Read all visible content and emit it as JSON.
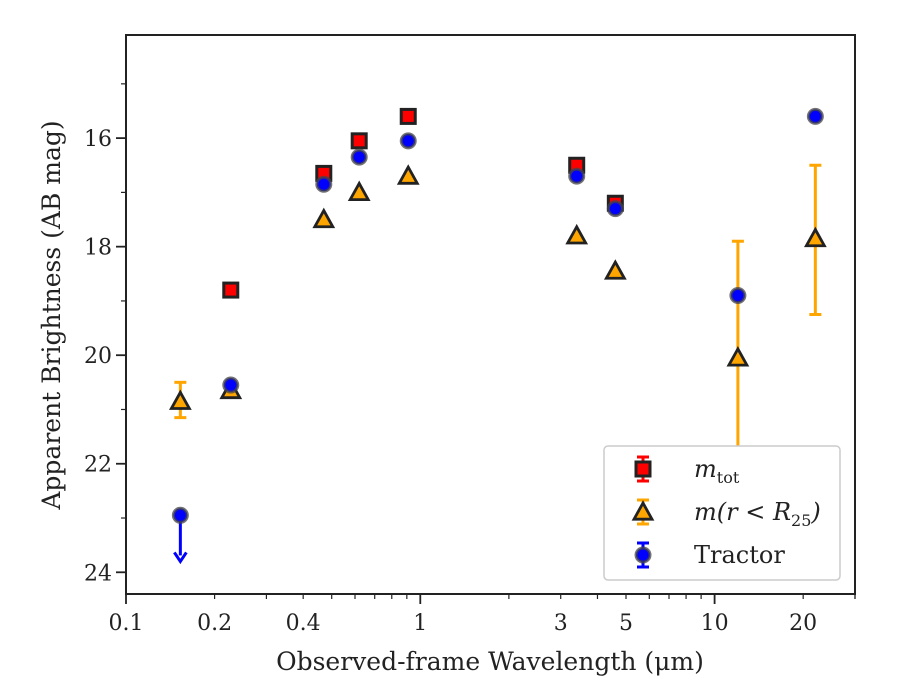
{
  "chart_data": {
    "type": "scatter",
    "xlabel": "Observed-frame Wavelength (μm)",
    "ylabel": "Apparent Brightness (AB mag)",
    "xscale": "log",
    "xlim": [
      0.1,
      30
    ],
    "ylim": [
      24.4,
      14.1
    ],
    "y_inverted": true,
    "x_ticks": [
      0.1,
      0.2,
      0.4,
      1,
      3,
      5,
      10,
      20
    ],
    "x_tick_labels": [
      "0.1",
      "0.2",
      "0.4",
      "1",
      "3",
      "5",
      "10",
      "20"
    ],
    "y_ticks": [
      16,
      18,
      20,
      22,
      24
    ],
    "y_tick_labels": [
      "16",
      "18",
      "20",
      "22",
      "24"
    ],
    "grid": false,
    "legend_position": "lower-right",
    "series": [
      {
        "name": "m_tot",
        "legend": {
          "italic": "m",
          "sub": "tot",
          "suffix": ""
        },
        "marker": "square",
        "color": "#ff0000",
        "edge_color": "#222222",
        "error_color": "#ff0000",
        "points": [
          {
            "x": 0.227,
            "y": 18.8
          },
          {
            "x": 0.47,
            "y": 16.65
          },
          {
            "x": 0.62,
            "y": 16.05
          },
          {
            "x": 0.91,
            "y": 15.6
          },
          {
            "x": 3.4,
            "y": 16.5
          },
          {
            "x": 4.6,
            "y": 17.2
          }
        ]
      },
      {
        "name": "m(r < R25)",
        "legend": {
          "italic": "m(r < R",
          "sub": "25",
          "suffix": ")"
        },
        "marker": "triangle",
        "color": "#ffa500",
        "edge_color": "#222222",
        "error_color": "#ffa500",
        "points": [
          {
            "x": 0.153,
            "y": 20.85,
            "yerr": [
              20.5,
              21.15
            ]
          },
          {
            "x": 0.227,
            "y": 20.65
          },
          {
            "x": 0.47,
            "y": 17.5
          },
          {
            "x": 0.62,
            "y": 17.0
          },
          {
            "x": 0.91,
            "y": 16.7
          },
          {
            "x": 3.4,
            "y": 17.8
          },
          {
            "x": 4.6,
            "y": 18.45
          },
          {
            "x": 12.0,
            "y": 20.05,
            "yerr": [
              17.9,
              22.2
            ]
          },
          {
            "x": 22.0,
            "y": 17.85,
            "yerr": [
              16.5,
              19.25
            ]
          }
        ]
      },
      {
        "name": "Tractor",
        "legend": {
          "italic": "",
          "sub": "",
          "suffix": "Tractor"
        },
        "marker": "circle",
        "color": "#0000ff",
        "edge_color": "#444444",
        "error_color": "#0000ff",
        "points": [
          {
            "x": 0.153,
            "y": 22.95,
            "upper_limit": true,
            "limit_to": 23.8
          },
          {
            "x": 0.227,
            "y": 20.55
          },
          {
            "x": 0.47,
            "y": 16.85
          },
          {
            "x": 0.62,
            "y": 16.35
          },
          {
            "x": 0.91,
            "y": 16.05
          },
          {
            "x": 3.4,
            "y": 16.7
          },
          {
            "x": 4.6,
            "y": 17.3
          },
          {
            "x": 12.0,
            "y": 18.9
          },
          {
            "x": 22.0,
            "y": 15.6
          }
        ]
      }
    ]
  }
}
